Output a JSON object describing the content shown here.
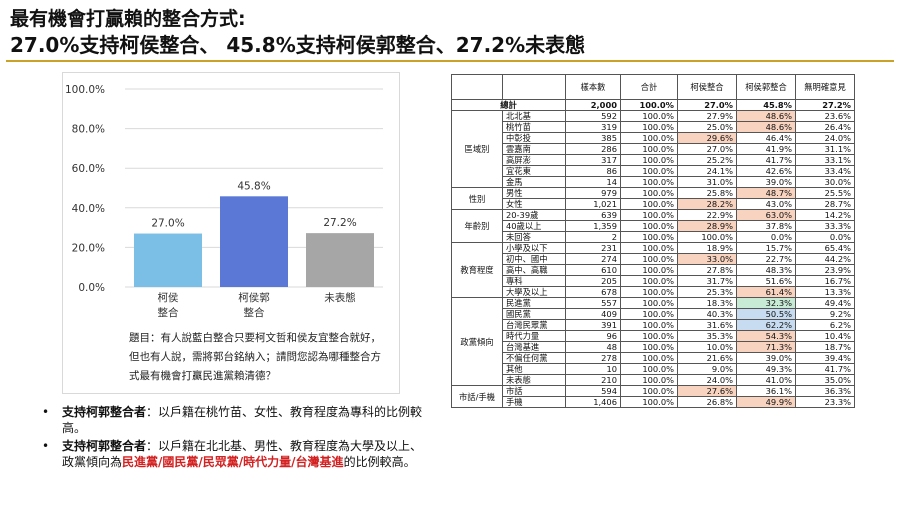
{
  "title": {
    "line1": "最有機會打贏賴的整合方式:",
    "line2": "27.0%支持柯侯整合、 45.8%支持柯侯郭整合、27.2%未表態"
  },
  "chart_data": {
    "type": "bar",
    "categories": [
      [
        "柯侯",
        "整合"
      ],
      [
        "柯侯郭",
        "整合"
      ],
      [
        "未表態"
      ]
    ],
    "values": [
      27.0,
      45.8,
      27.2
    ],
    "value_labels": [
      "27.0%",
      "45.8%",
      "27.2%"
    ],
    "colors": [
      "#7cbfe6",
      "#5b78d6",
      "#a6a6a6"
    ],
    "ylim": [
      0,
      100
    ],
    "yticks": [
      "0.0%",
      "20.0%",
      "40.0%",
      "60.0%",
      "80.0%",
      "100.0%"
    ],
    "grid": true
  },
  "question": "題目：有人說藍白整合只要柯文哲和侯友宜整合就好，但也有人說，需將郭台銘納入；請問您認為哪種整合方式最有機會打贏民進黨賴清德？",
  "notes": [
    {
      "bullet": "•",
      "head": "支持柯郭整合者",
      "body": "：以戶籍在桃竹苗、女性、教育程度為專科的比例較高。"
    },
    {
      "bullet": "•",
      "head": "支持柯郭整合者",
      "body_pre": "：以戶籍在北北基、男性、教育程度為大學及以上、政黨傾向為",
      "red": "民進黨/國民黨/民眾黨/時代力量/台灣基進",
      "body_post": "的比例較高。"
    }
  ],
  "table": {
    "headers": [
      "",
      "",
      "樣本數",
      "合計",
      "柯侯整合",
      "柯侯郭整合",
      "無明確意見"
    ],
    "total": {
      "label": "總計",
      "cells": [
        "2,000",
        "100.0%",
        "27.0%",
        "45.8%",
        "27.2%"
      ]
    },
    "groups": [
      {
        "name": "區域別",
        "rows": [
          {
            "label": "北北基",
            "cells": [
              "592",
              "100.0%",
              "27.9%",
              "48.6%",
              "23.6%"
            ],
            "hl": [
              "",
              "",
              "",
              "o",
              ""
            ]
          },
          {
            "label": "桃竹苗",
            "cells": [
              "319",
              "100.0%",
              "25.0%",
              "48.6%",
              "26.4%"
            ],
            "hl": [
              "",
              "",
              "",
              "o",
              ""
            ]
          },
          {
            "label": "中彰投",
            "cells": [
              "385",
              "100.0%",
              "29.6%",
              "46.4%",
              "24.0%"
            ],
            "hl": [
              "",
              "",
              "o",
              "",
              ""
            ]
          },
          {
            "label": "雲嘉南",
            "cells": [
              "286",
              "100.0%",
              "27.0%",
              "41.9%",
              "31.1%"
            ],
            "hl": [
              "",
              "",
              "",
              "",
              ""
            ]
          },
          {
            "label": "高屏澎",
            "cells": [
              "317",
              "100.0%",
              "25.2%",
              "41.7%",
              "33.1%"
            ],
            "hl": [
              "",
              "",
              "",
              "",
              ""
            ]
          },
          {
            "label": "宜花東",
            "cells": [
              "86",
              "100.0%",
              "24.1%",
              "42.6%",
              "33.4%"
            ],
            "hl": [
              "",
              "",
              "",
              "",
              ""
            ]
          },
          {
            "label": "金馬",
            "cells": [
              "14",
              "100.0%",
              "31.0%",
              "39.0%",
              "30.0%"
            ],
            "hl": [
              "",
              "",
              "",
              "",
              ""
            ]
          }
        ]
      },
      {
        "name": "性別",
        "rows": [
          {
            "label": "男性",
            "cells": [
              "979",
              "100.0%",
              "25.8%",
              "48.7%",
              "25.5%"
            ],
            "hl": [
              "",
              "",
              "",
              "o",
              ""
            ]
          },
          {
            "label": "女性",
            "cells": [
              "1,021",
              "100.0%",
              "28.2%",
              "43.0%",
              "28.7%"
            ],
            "hl": [
              "",
              "",
              "o",
              "",
              ""
            ]
          }
        ]
      },
      {
        "name": "年齡別",
        "rows": [
          {
            "label": "20-39歲",
            "cells": [
              "639",
              "100.0%",
              "22.9%",
              "63.0%",
              "14.2%"
            ],
            "hl": [
              "",
              "",
              "",
              "o",
              ""
            ]
          },
          {
            "label": "40歲以上",
            "cells": [
              "1,359",
              "100.0%",
              "28.9%",
              "37.8%",
              "33.3%"
            ],
            "hl": [
              "",
              "",
              "o",
              "",
              ""
            ]
          },
          {
            "label": "未回答",
            "cells": [
              "2",
              "100.0%",
              "100.0%",
              "0.0%",
              "0.0%"
            ],
            "hl": [
              "",
              "",
              "",
              "",
              ""
            ]
          }
        ]
      },
      {
        "name": "教育程度",
        "rows": [
          {
            "label": "小學及以下",
            "cells": [
              "231",
              "100.0%",
              "18.9%",
              "15.7%",
              "65.4%"
            ],
            "hl": [
              "",
              "",
              "",
              "",
              ""
            ]
          },
          {
            "label": "初中、國中",
            "cells": [
              "274",
              "100.0%",
              "33.0%",
              "22.7%",
              "44.2%"
            ],
            "hl": [
              "",
              "",
              "o",
              "",
              ""
            ]
          },
          {
            "label": "高中、高職",
            "cells": [
              "610",
              "100.0%",
              "27.8%",
              "48.3%",
              "23.9%"
            ],
            "hl": [
              "",
              "",
              "",
              "",
              ""
            ]
          },
          {
            "label": "專科",
            "cells": [
              "205",
              "100.0%",
              "31.7%",
              "51.6%",
              "16.7%"
            ],
            "hl": [
              "",
              "",
              "",
              "",
              ""
            ]
          },
          {
            "label": "大學及以上",
            "cells": [
              "678",
              "100.0%",
              "25.3%",
              "61.4%",
              "13.3%"
            ],
            "hl": [
              "",
              "",
              "",
              "o",
              ""
            ]
          }
        ]
      },
      {
        "name": "政黨傾向",
        "rows": [
          {
            "label": "民進黨",
            "cells": [
              "557",
              "100.0%",
              "18.3%",
              "32.3%",
              "49.4%"
            ],
            "hl": [
              "",
              "",
              "",
              "g",
              ""
            ]
          },
          {
            "label": "國民黨",
            "cells": [
              "409",
              "100.0%",
              "40.3%",
              "50.5%",
              "9.2%"
            ],
            "hl": [
              "",
              "",
              "",
              "b",
              ""
            ]
          },
          {
            "label": "台灣民眾黨",
            "cells": [
              "391",
              "100.0%",
              "31.6%",
              "62.2%",
              "6.2%"
            ],
            "hl": [
              "",
              "",
              "",
              "b",
              ""
            ]
          },
          {
            "label": "時代力量",
            "cells": [
              "96",
              "100.0%",
              "35.3%",
              "54.3%",
              "10.4%"
            ],
            "hl": [
              "",
              "",
              "",
              "o",
              ""
            ]
          },
          {
            "label": "台灣基進",
            "cells": [
              "48",
              "100.0%",
              "10.0%",
              "71.3%",
              "18.7%"
            ],
            "hl": [
              "",
              "",
              "",
              "o",
              ""
            ]
          },
          {
            "label": "不偏任何黨",
            "cells": [
              "278",
              "100.0%",
              "21.6%",
              "39.0%",
              "39.4%"
            ],
            "hl": [
              "",
              "",
              "",
              "",
              ""
            ]
          },
          {
            "label": "其他",
            "cells": [
              "10",
              "100.0%",
              "9.0%",
              "49.3%",
              "41.7%"
            ],
            "hl": [
              "",
              "",
              "",
              "",
              ""
            ]
          },
          {
            "label": "未表態",
            "cells": [
              "210",
              "100.0%",
              "24.0%",
              "41.0%",
              "35.0%"
            ],
            "hl": [
              "",
              "",
              "",
              "",
              ""
            ]
          }
        ]
      },
      {
        "name": "市話/手機",
        "rows": [
          {
            "label": "市話",
            "cells": [
              "594",
              "100.0%",
              "27.6%",
              "36.1%",
              "36.3%"
            ],
            "hl": [
              "",
              "",
              "o",
              "",
              ""
            ]
          },
          {
            "label": "手機",
            "cells": [
              "1,406",
              "100.0%",
              "26.8%",
              "49.9%",
              "23.3%"
            ],
            "hl": [
              "",
              "",
              "",
              "o",
              ""
            ]
          }
        ]
      }
    ]
  }
}
